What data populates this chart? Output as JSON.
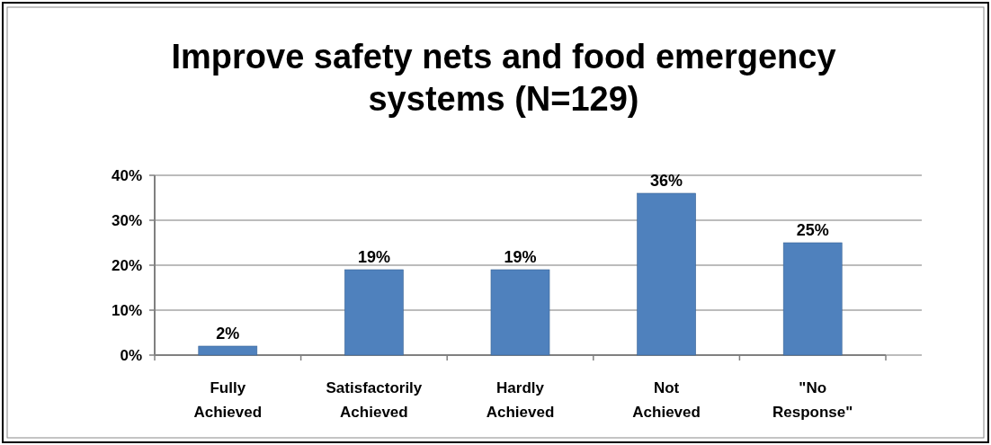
{
  "chart_data": {
    "type": "bar",
    "title": "Improve safety nets and food emergency systems (N=129)",
    "categories": [
      "Fully Achieved",
      "Satisfactorily Achieved",
      "Hardly Achieved",
      "Not Achieved",
      "\"No Response\""
    ],
    "values": [
      2,
      19,
      19,
      36,
      25
    ],
    "color": "#4f81bd",
    "ylim": [
      0,
      40
    ],
    "yticks": [
      {
        "value": 0,
        "label": "0%"
      },
      {
        "value": 10,
        "label": "10%"
      },
      {
        "value": 20,
        "label": "20%"
      },
      {
        "value": 30,
        "label": "30%"
      },
      {
        "value": 40,
        "label": "40%"
      }
    ],
    "grid": "y",
    "value_labels": [
      "2%",
      "19%",
      "19%",
      "36%",
      "25%"
    ]
  }
}
